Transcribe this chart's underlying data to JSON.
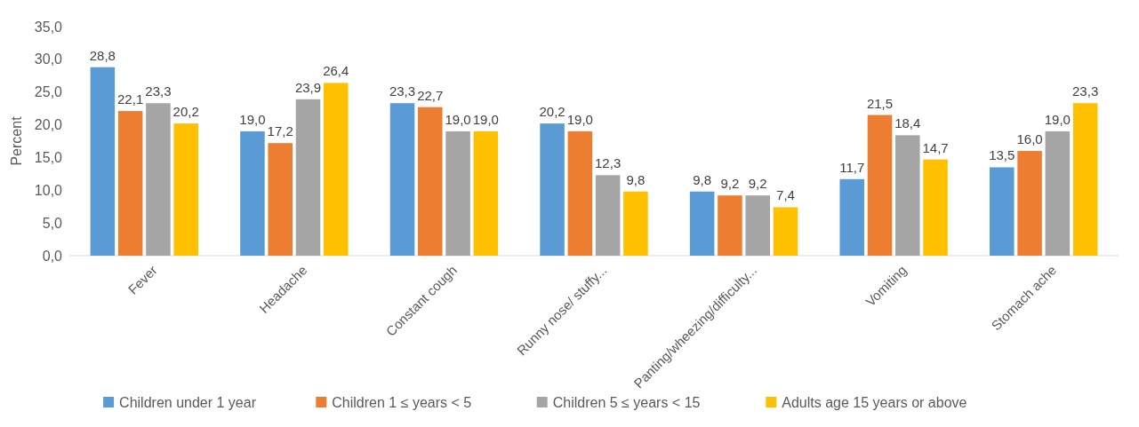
{
  "chart_data": {
    "type": "bar",
    "ylabel": "Percent",
    "categories": [
      "Fever",
      "Headache",
      "Constant cough",
      "Runny nose/ stuffy...",
      "Panting/wheezing/difficulty...",
      "Vomiting",
      "Stomach ache"
    ],
    "series": [
      {
        "name": "Children under 1 year",
        "color": "#5b9bd5",
        "values": [
          28.8,
          19.0,
          23.3,
          20.2,
          9.8,
          11.7,
          13.5
        ],
        "value_labels": [
          "28,8",
          "19,0",
          "23,3",
          "20,2",
          "9,8",
          "11,7",
          "13,5"
        ]
      },
      {
        "name": "Children 1 ≤ years < 5",
        "color": "#ed7d31",
        "values": [
          22.1,
          17.2,
          22.7,
          19.0,
          9.2,
          21.5,
          16.0
        ],
        "value_labels": [
          "22,1",
          "17,2",
          "22,7",
          "19,0",
          "9,2",
          "21,5",
          "16,0"
        ]
      },
      {
        "name": "Children 5 ≤ years < 15",
        "color": "#a5a5a5",
        "values": [
          23.3,
          23.9,
          19.0,
          12.3,
          9.2,
          18.4,
          19.0
        ],
        "value_labels": [
          "23,3",
          "23,9",
          "19,0",
          "12,3",
          "9,2",
          "18,4",
          "19,0"
        ]
      },
      {
        "name": "Adults age 15 years or above",
        "color": "#ffc000",
        "values": [
          20.2,
          26.4,
          19.0,
          9.8,
          7.4,
          14.7,
          23.3
        ],
        "value_labels": [
          "20,2",
          "26,4",
          "19,0",
          "9,8",
          "7,4",
          "14,7",
          "23,3"
        ]
      }
    ],
    "ylim": [
      0,
      35
    ],
    "yticks": [
      {
        "value": 0,
        "label": "0,0"
      },
      {
        "value": 5,
        "label": "5,0"
      },
      {
        "value": 10,
        "label": "10,0"
      },
      {
        "value": 15,
        "label": "15,0"
      },
      {
        "value": 20,
        "label": "20,0"
      },
      {
        "value": 25,
        "label": "25,0"
      },
      {
        "value": 30,
        "label": "30,0"
      },
      {
        "value": 35,
        "label": "35,0"
      }
    ],
    "legend": "bottom"
  }
}
